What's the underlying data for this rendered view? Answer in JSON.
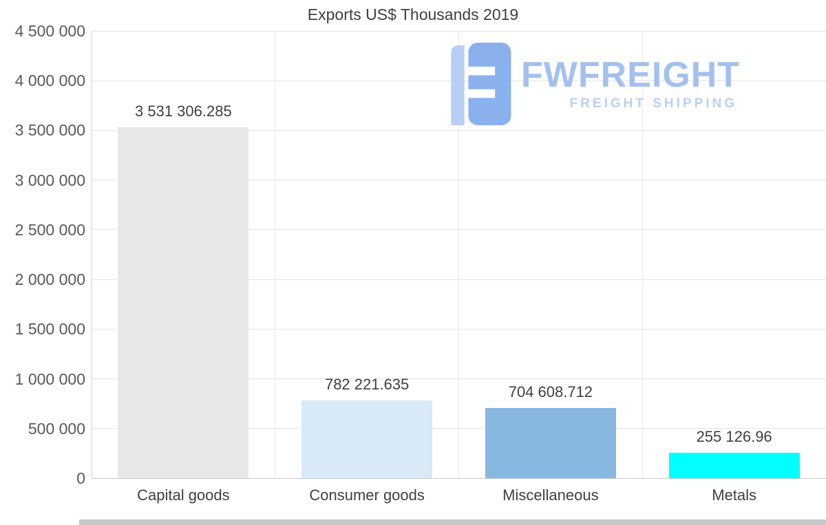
{
  "chart_data": {
    "type": "bar",
    "title": "Exports US$ Thousands 2019",
    "categories": [
      "Capital goods",
      "Consumer goods",
      "Miscellaneous",
      "Metals"
    ],
    "values": [
      3531306.285,
      782221.635,
      704608.712,
      255126.96
    ],
    "value_labels": [
      "3 531 306.285",
      "782 221.635",
      "704 608.712",
      "255 126.96"
    ],
    "bar_colors": [
      "#e8e8e8",
      "#d8e9f8",
      "#87b8df",
      "#00ffff"
    ],
    "ylim": [
      0,
      4500000
    ],
    "y_tick_interval": 500000,
    "y_tick_labels": [
      "0",
      "500 000",
      "1 000 000",
      "1 500 000",
      "2 000 000",
      "2 500 000",
      "3 000 000",
      "3 500 000",
      "4 000 000",
      "4 500 000"
    ],
    "xlabel": "",
    "ylabel": "",
    "grid": "horizontal gridlines at each y tick, vertical gridlines at category boundaries",
    "legend": "none"
  },
  "watermark": {
    "brand": "FWFREIGHT",
    "tagline": "FREIGHT SHIPPING",
    "brand_color": "#a3c1ee",
    "tagline_color": "#b9d0f3",
    "icon": "fwfreight-logo-icon",
    "icon_color_dark": "#8ab0ed",
    "icon_color_light": "#b7cff4"
  },
  "colors": {
    "background": "#ffffff",
    "grid_line": "#e4e4e4",
    "baseline": "#c9c9c9",
    "axis_line": "#d2d2d2",
    "title_text": "#3f3f3f",
    "tick_text": "#595959",
    "value_text": "#3f3f3f"
  }
}
